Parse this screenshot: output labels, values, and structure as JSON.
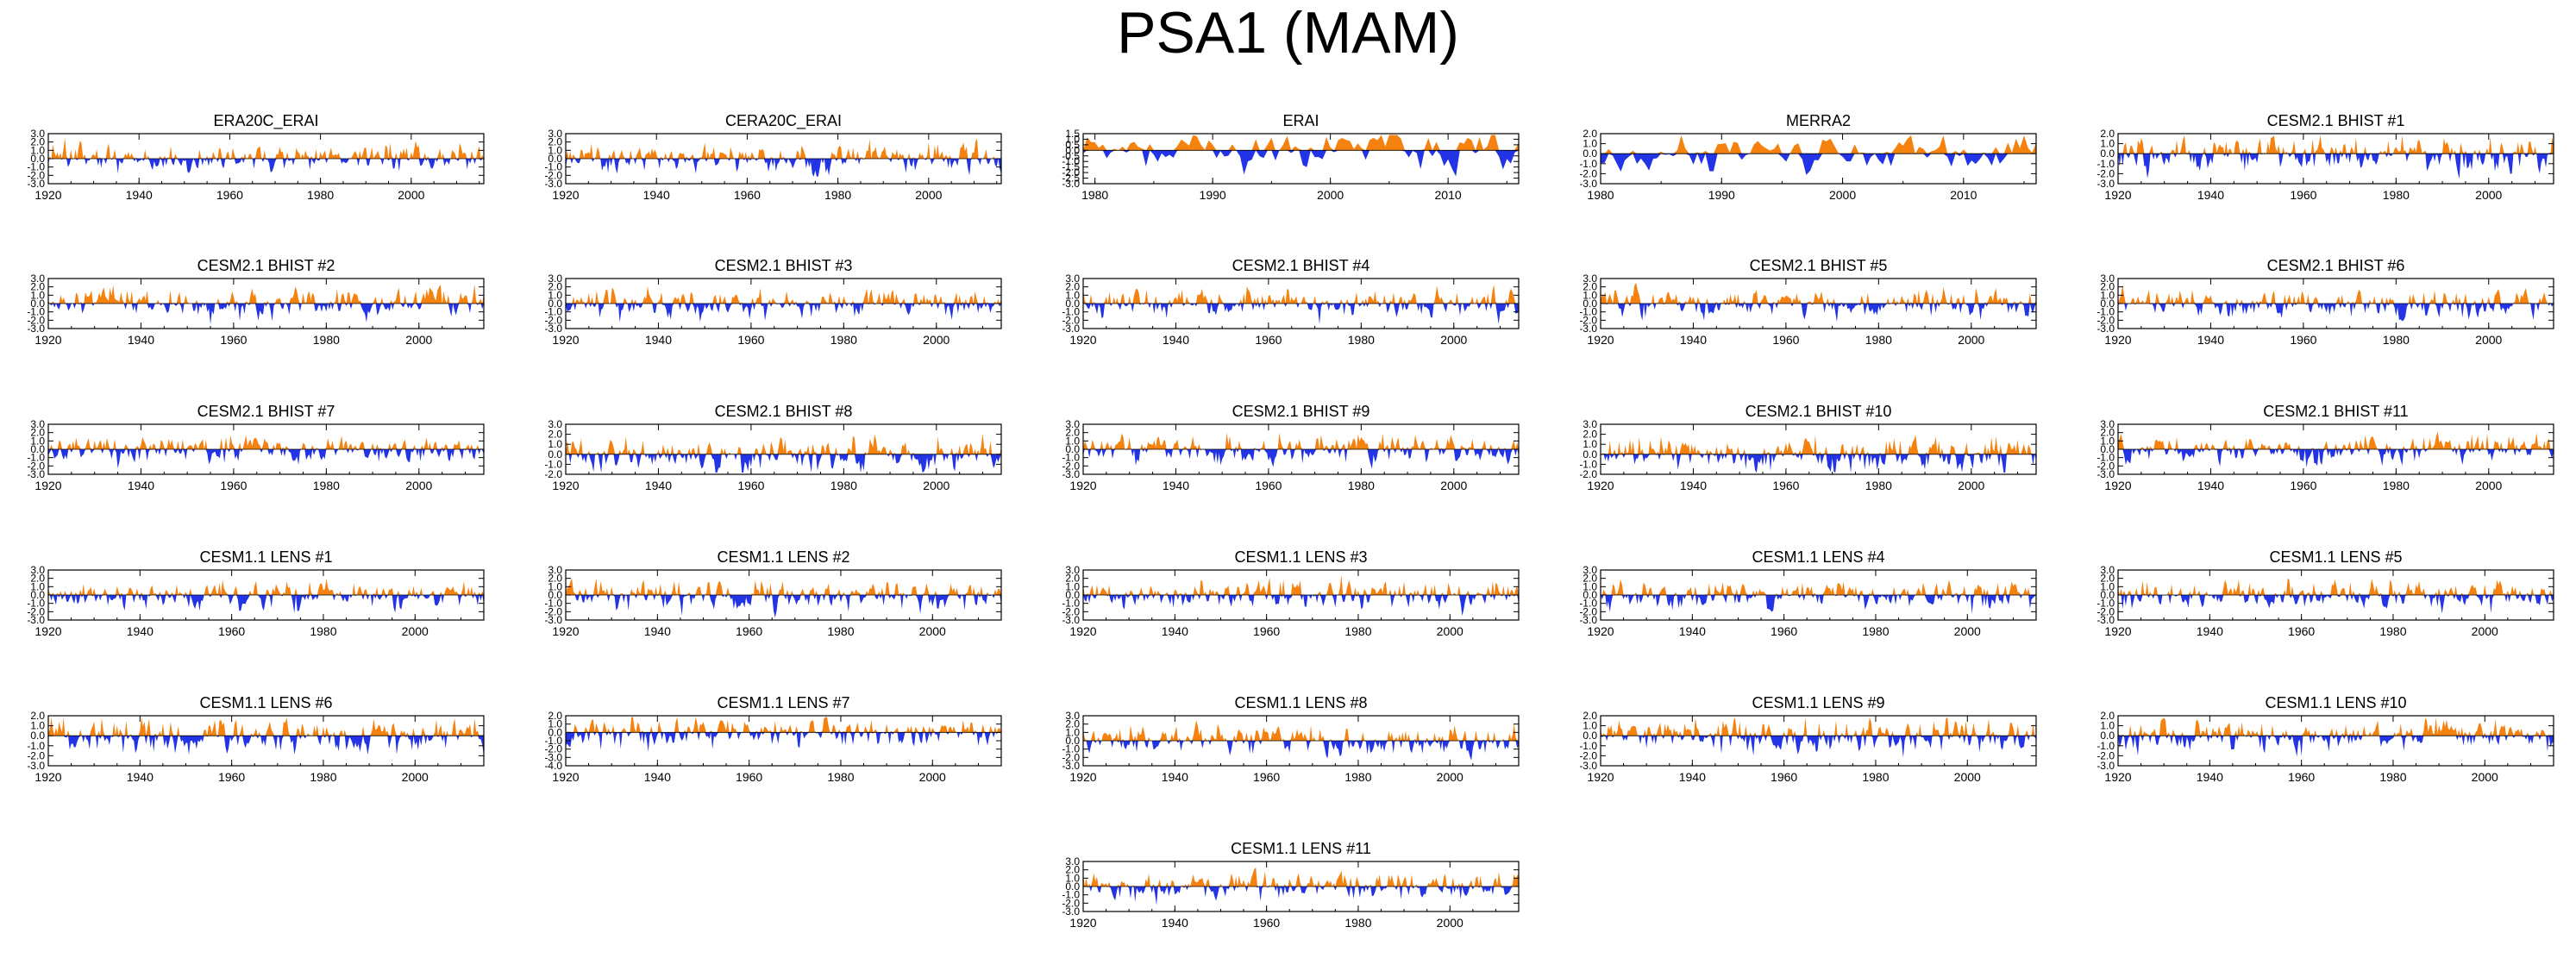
{
  "title": "PSA1 (MAM)",
  "colors": {
    "positive": "#f5820f",
    "negative": "#2333e6",
    "axis": "#000000"
  },
  "chart_data": [
    {
      "type": "area",
      "title": "ERA20C_ERAI",
      "x": [
        1920,
        2016
      ],
      "ylim": [
        -3,
        3
      ],
      "yticks": [
        -3,
        -2,
        -1,
        0,
        1,
        2,
        3
      ],
      "xticks": [
        1920,
        1940,
        1960,
        1980,
        2000
      ],
      "seed": 11
    },
    {
      "type": "area",
      "title": "CERA20C_ERAI",
      "x": [
        1920,
        2016
      ],
      "ylim": [
        -3,
        3
      ],
      "yticks": [
        -3,
        -2,
        -1,
        0,
        1,
        2,
        3
      ],
      "xticks": [
        1920,
        1940,
        1960,
        1980,
        2000
      ],
      "seed": 23
    },
    {
      "type": "area",
      "title": "ERAI",
      "x": [
        1979,
        2016
      ],
      "ylim": [
        -3,
        1.5
      ],
      "yticks": [
        -3,
        -2.5,
        -2,
        -1.5,
        -1,
        -0.5,
        0,
        0.5,
        1,
        1.5
      ],
      "xticks": [
        1980,
        1990,
        2000,
        2010
      ],
      "seed": 37
    },
    {
      "type": "area",
      "title": "MERRA2",
      "x": [
        1980,
        2016
      ],
      "ylim": [
        -3,
        2
      ],
      "yticks": [
        -3,
        -2,
        -1,
        0,
        1,
        2
      ],
      "xticks": [
        1980,
        1990,
        2000,
        2010
      ],
      "seed": 41
    },
    {
      "type": "area",
      "title": "CESM2.1 BHIST #1",
      "x": [
        1920,
        2014
      ],
      "ylim": [
        -3,
        2
      ],
      "yticks": [
        -3,
        -2,
        -1,
        0,
        1,
        2
      ],
      "xticks": [
        1920,
        1940,
        1960,
        1980,
        2000
      ],
      "seed": 53
    },
    {
      "type": "area",
      "title": "CESM2.1 BHIST #2",
      "x": [
        1920,
        2014
      ],
      "ylim": [
        -3,
        3
      ],
      "yticks": [
        -3,
        -2,
        -1,
        0,
        1,
        2,
        3
      ],
      "xticks": [
        1920,
        1940,
        1960,
        1980,
        2000
      ],
      "seed": 61
    },
    {
      "type": "area",
      "title": "CESM2.1 BHIST #3",
      "x": [
        1920,
        2014
      ],
      "ylim": [
        -3,
        3
      ],
      "yticks": [
        -3,
        -2,
        -1,
        0,
        1,
        2,
        3
      ],
      "xticks": [
        1920,
        1940,
        1960,
        1980,
        2000
      ],
      "seed": 73
    },
    {
      "type": "area",
      "title": "CESM2.1 BHIST #4",
      "x": [
        1920,
        2014
      ],
      "ylim": [
        -3,
        3
      ],
      "yticks": [
        -3,
        -2,
        -1,
        0,
        1,
        2,
        3
      ],
      "xticks": [
        1920,
        1940,
        1960,
        1980,
        2000
      ],
      "seed": 89
    },
    {
      "type": "area",
      "title": "CESM2.1 BHIST #5",
      "x": [
        1920,
        2014
      ],
      "ylim": [
        -3,
        3
      ],
      "yticks": [
        -3,
        -2,
        -1,
        0,
        1,
        2,
        3
      ],
      "xticks": [
        1920,
        1940,
        1960,
        1980,
        2000
      ],
      "seed": 97
    },
    {
      "type": "area",
      "title": "CESM2.1 BHIST #6",
      "x": [
        1920,
        2014
      ],
      "ylim": [
        -3,
        3
      ],
      "yticks": [
        -3,
        -2,
        -1,
        0,
        1,
        2,
        3
      ],
      "xticks": [
        1920,
        1940,
        1960,
        1980,
        2000
      ],
      "seed": 101
    },
    {
      "type": "area",
      "title": "CESM2.1 BHIST #7",
      "x": [
        1920,
        2014
      ],
      "ylim": [
        -3,
        3
      ],
      "yticks": [
        -3,
        -2,
        -1,
        0,
        1,
        2,
        3
      ],
      "xticks": [
        1920,
        1940,
        1960,
        1980,
        2000
      ],
      "seed": 113
    },
    {
      "type": "area",
      "title": "CESM2.1 BHIST #8",
      "x": [
        1920,
        2014
      ],
      "ylim": [
        -2,
        3
      ],
      "yticks": [
        -2,
        -1,
        0,
        1,
        2,
        3
      ],
      "xticks": [
        1920,
        1940,
        1960,
        1980,
        2000
      ],
      "seed": 127
    },
    {
      "type": "area",
      "title": "CESM2.1 BHIST #9",
      "x": [
        1920,
        2014
      ],
      "ylim": [
        -3,
        3
      ],
      "yticks": [
        -3,
        -2,
        -1,
        0,
        1,
        2,
        3
      ],
      "xticks": [
        1920,
        1940,
        1960,
        1980,
        2000
      ],
      "seed": 131
    },
    {
      "type": "area",
      "title": "CESM2.1 BHIST #10",
      "x": [
        1920,
        2014
      ],
      "ylim": [
        -2,
        3
      ],
      "yticks": [
        -2,
        -1,
        0,
        1,
        2,
        3
      ],
      "xticks": [
        1920,
        1940,
        1960,
        1980,
        2000
      ],
      "seed": 137
    },
    {
      "type": "area",
      "title": "CESM2.1 BHIST #11",
      "x": [
        1920,
        2014
      ],
      "ylim": [
        -3,
        3
      ],
      "yticks": [
        -3,
        -2,
        -1,
        0,
        1,
        2,
        3
      ],
      "xticks": [
        1920,
        1940,
        1960,
        1980,
        2000
      ],
      "seed": 149
    },
    {
      "type": "area",
      "title": "CESM1.1 LENS #1",
      "x": [
        1920,
        2015
      ],
      "ylim": [
        -3,
        3
      ],
      "yticks": [
        -3,
        -2,
        -1,
        0,
        1,
        2,
        3
      ],
      "xticks": [
        1920,
        1940,
        1960,
        1980,
        2000
      ],
      "seed": 151
    },
    {
      "type": "area",
      "title": "CESM1.1 LENS #2",
      "x": [
        1920,
        2015
      ],
      "ylim": [
        -3,
        3
      ],
      "yticks": [
        -3,
        -2,
        -1,
        0,
        1,
        2,
        3
      ],
      "xticks": [
        1920,
        1940,
        1960,
        1980,
        2000
      ],
      "seed": 163
    },
    {
      "type": "area",
      "title": "CESM1.1 LENS #3",
      "x": [
        1920,
        2015
      ],
      "ylim": [
        -3,
        3
      ],
      "yticks": [
        -3,
        -2,
        -1,
        0,
        1,
        2,
        3
      ],
      "xticks": [
        1920,
        1940,
        1960,
        1980,
        2000
      ],
      "seed": 167
    },
    {
      "type": "area",
      "title": "CESM1.1 LENS #4",
      "x": [
        1920,
        2015
      ],
      "ylim": [
        -3,
        3
      ],
      "yticks": [
        -3,
        -2,
        -1,
        0,
        1,
        2,
        3
      ],
      "xticks": [
        1920,
        1940,
        1960,
        1980,
        2000
      ],
      "seed": 173
    },
    {
      "type": "area",
      "title": "CESM1.1 LENS #5",
      "x": [
        1920,
        2015
      ],
      "ylim": [
        -3,
        3
      ],
      "yticks": [
        -3,
        -2,
        -1,
        0,
        1,
        2,
        3
      ],
      "xticks": [
        1920,
        1940,
        1960,
        1980,
        2000
      ],
      "seed": 179
    },
    {
      "type": "area",
      "title": "CESM1.1 LENS #6",
      "x": [
        1920,
        2015
      ],
      "ylim": [
        -3,
        2
      ],
      "yticks": [
        -3,
        -2,
        -1,
        0,
        1,
        2
      ],
      "xticks": [
        1920,
        1940,
        1960,
        1980,
        2000
      ],
      "seed": 181
    },
    {
      "type": "area",
      "title": "CESM1.1 LENS #7",
      "x": [
        1920,
        2015
      ],
      "ylim": [
        -4,
        2
      ],
      "yticks": [
        -4,
        -3,
        -2,
        -1,
        0,
        1,
        2
      ],
      "xticks": [
        1920,
        1940,
        1960,
        1980,
        2000
      ],
      "seed": 191
    },
    {
      "type": "area",
      "title": "CESM1.1 LENS #8",
      "x": [
        1920,
        2015
      ],
      "ylim": [
        -3,
        3
      ],
      "yticks": [
        -3,
        -2,
        -1,
        0,
        1,
        2,
        3
      ],
      "xticks": [
        1920,
        1940,
        1960,
        1980,
        2000
      ],
      "seed": 193
    },
    {
      "type": "area",
      "title": "CESM1.1 LENS #9",
      "x": [
        1920,
        2015
      ],
      "ylim": [
        -3,
        2
      ],
      "yticks": [
        -3,
        -2,
        -1,
        0,
        1,
        2
      ],
      "xticks": [
        1920,
        1940,
        1960,
        1980,
        2000
      ],
      "seed": 197
    },
    {
      "type": "area",
      "title": "CESM1.1 LENS #10",
      "x": [
        1920,
        2015
      ],
      "ylim": [
        -3,
        2
      ],
      "yticks": [
        -3,
        -2,
        -1,
        0,
        1,
        2
      ],
      "xticks": [
        1920,
        1940,
        1960,
        1980,
        2000
      ],
      "seed": 199
    },
    {
      "type": "area",
      "title": "CESM1.1 LENS #11",
      "x": [
        1920,
        2015
      ],
      "ylim": [
        -3,
        3
      ],
      "yticks": [
        -3,
        -2,
        -1,
        0,
        1,
        2,
        3
      ],
      "xticks": [
        1920,
        1940,
        1960,
        1980,
        2000
      ],
      "seed": 211
    }
  ]
}
